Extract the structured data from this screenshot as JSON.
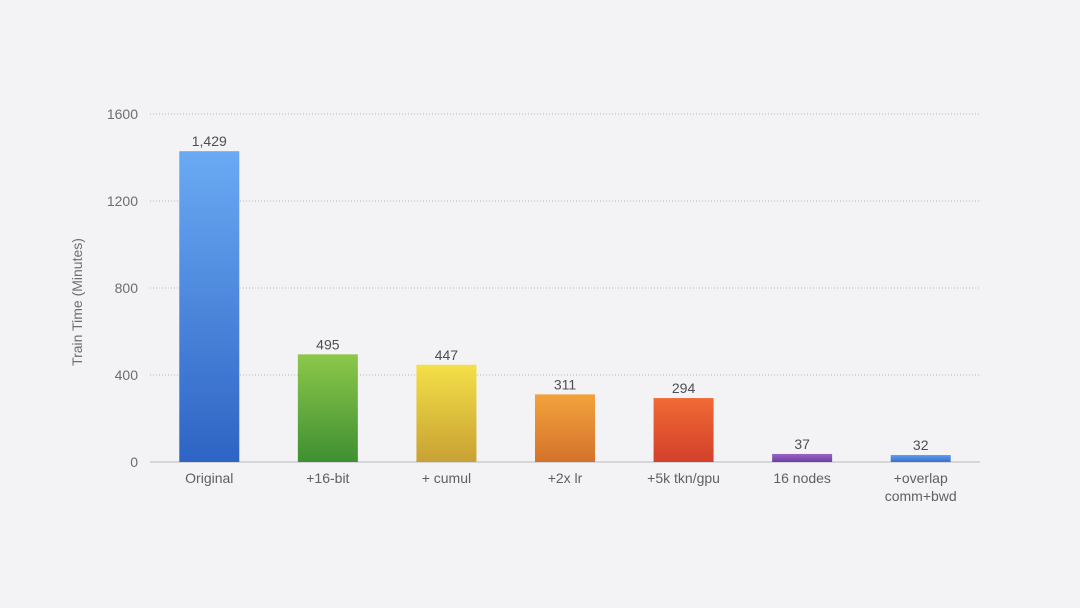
{
  "chart_data": {
    "type": "bar",
    "ylabel": "Train Time (Minutes)",
    "xlabel": "",
    "ylim": [
      0,
      1600
    ],
    "yticks": [
      "0",
      "400",
      "800",
      "1200",
      "1600"
    ],
    "grid": true,
    "categories": [
      [
        "Original"
      ],
      [
        "+16-bit"
      ],
      [
        "+ cumul"
      ],
      [
        "+2x lr"
      ],
      [
        "+5k tkn/gpu"
      ],
      [
        "16 nodes"
      ],
      [
        "+overlap",
        "comm+bwd"
      ]
    ],
    "values": [
      1429,
      495,
      447,
      311,
      294,
      37,
      32
    ],
    "value_labels": [
      "1,429",
      "495",
      "447",
      "311",
      "294",
      "37",
      "32"
    ],
    "bar_colors": [
      [
        "#6aaaf3",
        "#2e64c4"
      ],
      [
        "#8cc84b",
        "#3f8f32"
      ],
      [
        "#f3e047",
        "#c8a134"
      ],
      [
        "#f2a33c",
        "#d4722b"
      ],
      [
        "#f06a35",
        "#d2402a"
      ],
      [
        "#9a62c8",
        "#6a3f9e"
      ],
      [
        "#5b9ef0",
        "#3d6fc9"
      ]
    ]
  }
}
